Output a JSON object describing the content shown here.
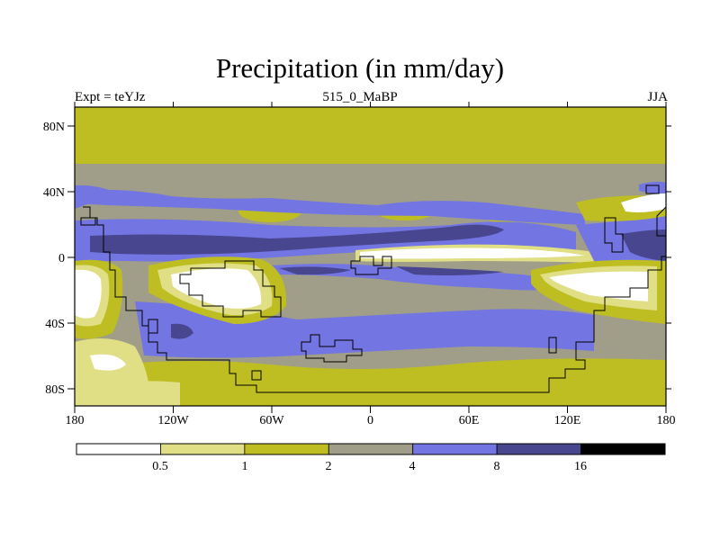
{
  "title": "Precipitation (in mm/day)",
  "subtitle_left": "Expt = teYJz",
  "subtitle_center": "515_0_MaBP",
  "subtitle_right": "JJA",
  "x_ticks": [
    "180",
    "120W",
    "60W",
    "0",
    "60E",
    "120E",
    "180"
  ],
  "y_ticks": [
    "80N",
    "40N",
    "0",
    "40S",
    "80S"
  ],
  "colorbar": {
    "colors": [
      "#ffffff",
      "#e0df85",
      "#bebe22",
      "#a09e88",
      "#7375e2",
      "#47468f",
      "#000000"
    ],
    "labels": [
      "0.5",
      "1",
      "2",
      "4",
      "8",
      "16"
    ]
  },
  "chart_data": {
    "type": "heatmap",
    "title": "Precipitation (in mm/day)",
    "x_range": [
      -180,
      180
    ],
    "y_range": [
      -90,
      90
    ],
    "x_unit": "longitude",
    "y_unit": "latitude",
    "levels": [
      0.5,
      1,
      2,
      4,
      8,
      16
    ],
    "level_colors": [
      "#ffffff",
      "#e0df85",
      "#bebe22",
      "#a09e88",
      "#7375e2",
      "#47468f",
      "#000000"
    ]
  }
}
